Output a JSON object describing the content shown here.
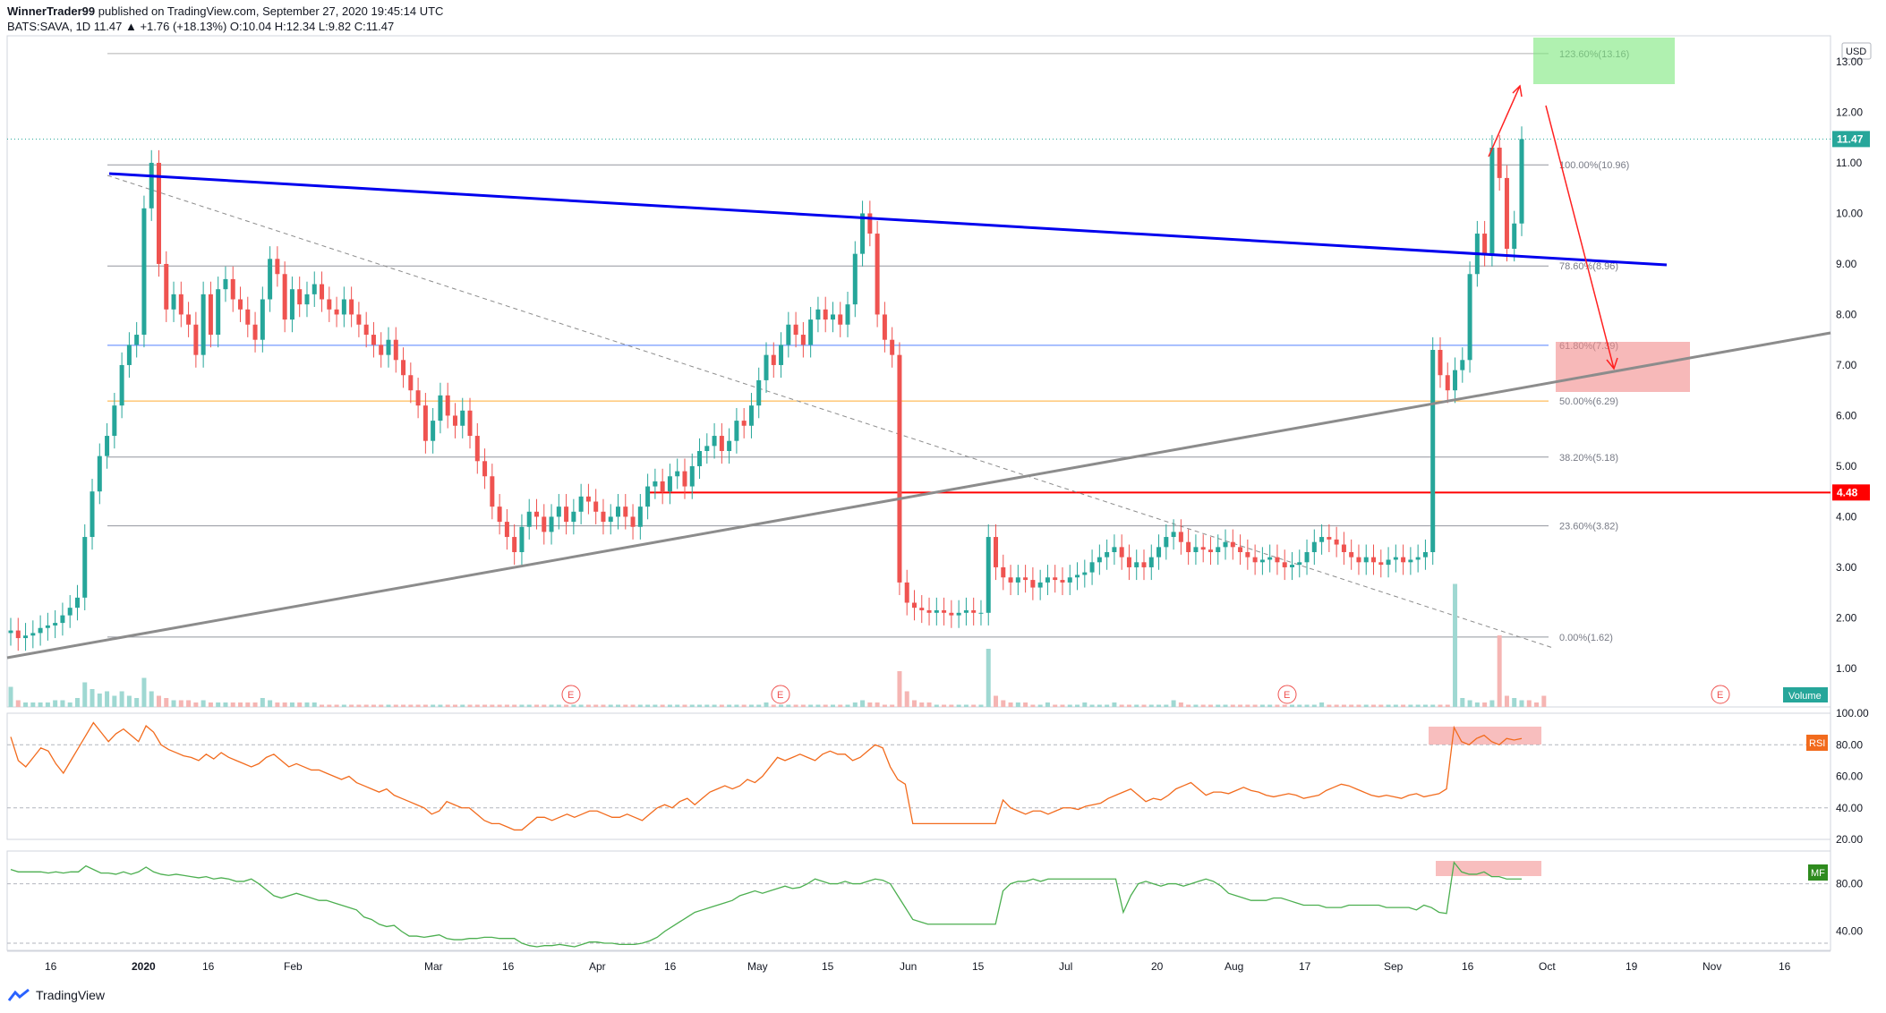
{
  "header": {
    "publisher_line": "WinnerTrader99 published on TradingView.com, September 27, 2020 19:45:14 UTC",
    "publisher": "WinnerTrader99",
    "published_text": " published on TradingView.com, September 27, 2020 19:45:14 UTC",
    "ohlc_line": "BATS:SAVA, 1D  11.47 ▲ +1.76 (+18.13%) O:10.04 H:12.34 L:9.82 C:11.47"
  },
  "footer": {
    "brand": "TradingView"
  },
  "colors": {
    "up": "#26a69a",
    "down": "#ef5350",
    "trend_blue": "#0000ee",
    "trend_gray": "#8c8c8c",
    "support_red": "#ff0000",
    "rsi": "#f26b1d",
    "mf": "#4caf50",
    "fib_618": "#2962ff",
    "fib_50": "#ff9800"
  },
  "chart_data": [
    {
      "type": "candlestick",
      "title": "BATS:SAVA, 1D",
      "currency_label": "USD",
      "ylim": [
        0.6,
        13.6
      ],
      "y_ticks": [
        "13.00",
        "12.00",
        "11.00",
        "10.00",
        "9.00",
        "8.00",
        "7.00",
        "6.00",
        "5.00",
        "4.00",
        "3.00",
        "2.00",
        "1.00"
      ],
      "x_ticks": [
        "16",
        "2020",
        "16",
        "Feb",
        "Mar",
        "16",
        "Apr",
        "16",
        "May",
        "15",
        "Jun",
        "15",
        "Jul",
        "20",
        "Aug",
        "17",
        "Sep",
        "16",
        "Oct",
        "19",
        "Nov",
        "16"
      ],
      "price_labels": [
        {
          "text": "11.47",
          "color": "#26a69a"
        },
        {
          "text": "4.48",
          "color": "#ff0000"
        }
      ],
      "fibonacci": [
        {
          "label": "123.60%(13.16)",
          "value": 13.16
        },
        {
          "label": "100.00%(10.96)",
          "value": 10.96
        },
        {
          "label": "78.60%(8.96)",
          "value": 8.96
        },
        {
          "label": "61.80%(7.39)",
          "value": 7.39
        },
        {
          "label": "50.00%(6.29)",
          "value": 6.29
        },
        {
          "label": "38.20%(5.18)",
          "value": 5.18
        },
        {
          "label": "23.60%(3.82)",
          "value": 3.82
        },
        {
          "label": "0.00%(1.62)",
          "value": 1.62
        }
      ],
      "horizontal_support": 4.48,
      "volume_label": "Volume",
      "earnings_marker": "E",
      "close_series": [
        1.75,
        1.6,
        1.65,
        1.7,
        1.8,
        1.85,
        1.9,
        2.05,
        2.2,
        2.4,
        3.6,
        4.5,
        5.2,
        5.6,
        6.2,
        7.0,
        7.4,
        7.6,
        10.1,
        11.0,
        9.0,
        8.1,
        8.4,
        8.0,
        7.8,
        7.2,
        8.4,
        7.6,
        8.5,
        8.7,
        8.3,
        8.1,
        7.8,
        7.5,
        8.3,
        9.1,
        8.8,
        7.9,
        8.5,
        8.2,
        8.4,
        8.6,
        8.3,
        8.1,
        8.0,
        8.3,
        8.0,
        7.8,
        7.6,
        7.4,
        7.2,
        7.5,
        7.1,
        6.8,
        6.5,
        6.2,
        5.5,
        5.9,
        6.4,
        6.0,
        5.8,
        6.1,
        5.6,
        5.1,
        4.8,
        4.2,
        3.9,
        3.6,
        3.3,
        3.8,
        4.1,
        4.0,
        3.7,
        4.0,
        4.2,
        3.9,
        4.1,
        4.4,
        4.3,
        4.1,
        3.9,
        4.0,
        4.2,
        4.0,
        3.8,
        4.2,
        4.6,
        4.7,
        4.5,
        4.8,
        4.9,
        4.6,
        5.0,
        5.3,
        5.4,
        5.6,
        5.3,
        5.5,
        5.9,
        5.8,
        6.2,
        6.7,
        7.2,
        7.0,
        7.4,
        7.8,
        7.6,
        7.4,
        7.9,
        8.1,
        7.9,
        8.0,
        7.8,
        8.2,
        9.2,
        10.0,
        9.6,
        8.0,
        7.5,
        7.2,
        2.7,
        2.3,
        2.2,
        2.15,
        2.1,
        2.15,
        2.1,
        2.05,
        2.1,
        2.15,
        2.1,
        2.1,
        3.6,
        3.0,
        2.8,
        2.7,
        2.8,
        2.75,
        2.6,
        2.7,
        2.8,
        2.75,
        2.7,
        2.8,
        2.85,
        2.9,
        3.1,
        3.2,
        3.3,
        3.4,
        3.2,
        3.0,
        3.1,
        3.0,
        3.2,
        3.4,
        3.6,
        3.7,
        3.5,
        3.3,
        3.4,
        3.35,
        3.3,
        3.4,
        3.5,
        3.4,
        3.3,
        3.2,
        3.1,
        3.15,
        3.2,
        3.1,
        3.0,
        3.05,
        3.1,
        3.3,
        3.5,
        3.6,
        3.55,
        3.45,
        3.3,
        3.2,
        3.1,
        3.2,
        3.1,
        3.05,
        3.15,
        3.2,
        3.1,
        3.15,
        3.2,
        3.3,
        7.3,
        6.8,
        6.5,
        6.9,
        7.1,
        8.8,
        9.6,
        9.2,
        11.3,
        10.7,
        9.3,
        9.8,
        11.47
      ],
      "volume_series": [
        0.9,
        0.3,
        0.2,
        0.2,
        0.2,
        0.2,
        0.3,
        0.3,
        0.2,
        0.4,
        1.1,
        0.8,
        0.6,
        0.7,
        0.5,
        0.7,
        0.5,
        0.4,
        1.3,
        0.7,
        0.5,
        0.4,
        0.3,
        0.3,
        0.3,
        0.2,
        0.3,
        0.2,
        0.2,
        0.2,
        0.2,
        0.2,
        0.2,
        0.2,
        0.4,
        0.3,
        0.2,
        0.2,
        0.2,
        0.2,
        0.2,
        0.2,
        0.1,
        0.1,
        0.1,
        0.1,
        0.1,
        0.1,
        0.1,
        0.1,
        0.1,
        0.1,
        0.1,
        0.1,
        0.1,
        0.1,
        0.1,
        0.1,
        0.1,
        0.1,
        0.1,
        0.1,
        0.1,
        0.1,
        0.1,
        0.1,
        0.1,
        0.1,
        0.1,
        0.1,
        0.1,
        0.1,
        0.1,
        0.1,
        0.1,
        0.1,
        0.1,
        0.1,
        0.1,
        0.1,
        0.1,
        0.1,
        0.1,
        0.1,
        0.1,
        0.1,
        0.1,
        0.1,
        0.1,
        0.1,
        0.1,
        0.1,
        0.1,
        0.1,
        0.1,
        0.1,
        0.1,
        0.1,
        0.1,
        0.1,
        0.1,
        0.1,
        0.2,
        0.1,
        0.1,
        0.1,
        0.1,
        0.1,
        0.1,
        0.1,
        0.1,
        0.1,
        0.1,
        0.1,
        0.2,
        0.3,
        0.2,
        0.2,
        0.1,
        0.1,
        1.6,
        0.7,
        0.3,
        0.2,
        0.2,
        0.1,
        0.1,
        0.1,
        0.1,
        0.1,
        0.1,
        0.1,
        2.6,
        0.5,
        0.3,
        0.2,
        0.2,
        0.2,
        0.1,
        0.1,
        0.2,
        0.1,
        0.1,
        0.1,
        0.1,
        0.2,
        0.1,
        0.1,
        0.1,
        0.2,
        0.1,
        0.1,
        0.1,
        0.1,
        0.1,
        0.1,
        0.1,
        0.3,
        0.2,
        0.1,
        0.1,
        0.1,
        0.1,
        0.1,
        0.1,
        0.1,
        0.1,
        0.1,
        0.1,
        0.1,
        0.1,
        0.1,
        0.1,
        0.1,
        0.1,
        0.1,
        0.1,
        0.2,
        0.1,
        0.1,
        0.1,
        0.1,
        0.1,
        0.1,
        0.1,
        0.1,
        0.1,
        0.1,
        0.1,
        0.1,
        0.1,
        0.1,
        0.1,
        0.1,
        0.1,
        5.5,
        0.4,
        0.3,
        0.2,
        0.2,
        0.3,
        3.2,
        0.5,
        0.4,
        0.3,
        0.3,
        0.2,
        0.5
      ]
    },
    {
      "type": "line",
      "title": "RSI",
      "ylim": [
        20,
        100
      ],
      "y_ticks": [
        "100.00",
        "80.00",
        "60.00",
        "40.00",
        "20.00"
      ],
      "values": [
        85,
        70,
        66,
        72,
        78,
        76,
        68,
        62,
        70,
        78,
        86,
        94,
        88,
        82,
        87,
        90,
        86,
        82,
        92,
        88,
        80,
        77,
        75,
        73,
        72,
        70,
        74,
        71,
        75,
        72,
        70,
        68,
        66,
        68,
        72,
        74,
        70,
        66,
        68,
        66,
        64,
        64,
        62,
        60,
        58,
        60,
        56,
        54,
        52,
        50,
        52,
        48,
        46,
        44,
        42,
        40,
        36,
        38,
        44,
        42,
        40,
        40,
        36,
        32,
        30,
        30,
        28,
        26,
        26,
        30,
        34,
        34,
        32,
        34,
        36,
        34,
        36,
        38,
        38,
        36,
        34,
        34,
        36,
        34,
        32,
        36,
        40,
        42,
        40,
        44,
        46,
        42,
        46,
        50,
        52,
        54,
        52,
        54,
        58,
        56,
        60,
        66,
        72,
        70,
        72,
        74,
        72,
        70,
        74,
        76,
        74,
        74,
        70,
        72,
        76,
        80,
        78,
        66,
        58,
        55,
        30,
        30,
        30,
        30,
        30,
        30,
        30,
        30,
        30,
        30,
        30,
        30,
        45,
        40,
        38,
        36,
        38,
        38,
        36,
        38,
        40,
        40,
        39,
        41,
        42,
        43,
        46,
        48,
        50,
        52,
        48,
        44,
        46,
        45,
        48,
        52,
        54,
        56,
        52,
        48,
        50,
        50,
        49,
        51,
        53,
        51,
        50,
        48,
        47,
        48,
        49,
        48,
        46,
        47,
        48,
        51,
        53,
        55,
        54,
        52,
        50,
        48,
        47,
        48,
        47,
        46,
        48,
        49,
        47,
        48,
        49,
        52,
        91,
        82,
        80,
        84,
        86,
        82,
        80,
        84,
        83,
        84
      ]
    },
    {
      "type": "line",
      "title": "MF",
      "ylim": [
        24,
        100
      ],
      "y_ticks": [
        "80.00",
        "40.00"
      ],
      "values": [
        92,
        90,
        90,
        90,
        90,
        89,
        90,
        89,
        90,
        90,
        95,
        92,
        89,
        89,
        88,
        90,
        88,
        90,
        94,
        90,
        88,
        87,
        88,
        87,
        86,
        85,
        86,
        84,
        85,
        84,
        82,
        82,
        84,
        80,
        75,
        70,
        68,
        70,
        72,
        70,
        68,
        66,
        66,
        64,
        62,
        60,
        58,
        52,
        50,
        46,
        44,
        45,
        40,
        36,
        36,
        35,
        36,
        37,
        34,
        33,
        33,
        34,
        34,
        35,
        35,
        34,
        34,
        34,
        30,
        28,
        27,
        28,
        28,
        29,
        28,
        27,
        29,
        31,
        31,
        30,
        30,
        29,
        29,
        29,
        30,
        32,
        35,
        40,
        44,
        48,
        52,
        56,
        58,
        60,
        62,
        64,
        66,
        70,
        72,
        74,
        72,
        74,
        76,
        78,
        76,
        77,
        80,
        84,
        82,
        80,
        80,
        82,
        80,
        80,
        82,
        84,
        83,
        80,
        70,
        60,
        50,
        48,
        46,
        46,
        46,
        46,
        46,
        46,
        46,
        46,
        46,
        46,
        74,
        80,
        82,
        82,
        84,
        82,
        84,
        84,
        84,
        84,
        84,
        84,
        84,
        84,
        84,
        84,
        56,
        70,
        80,
        82,
        80,
        78,
        80,
        80,
        78,
        80,
        82,
        84,
        82,
        78,
        72,
        70,
        68,
        66,
        66,
        66,
        68,
        68,
        66,
        64,
        62,
        62,
        62,
        60,
        60,
        60,
        62,
        62,
        62,
        62,
        62,
        60,
        60,
        60,
        60,
        58,
        62,
        60,
        56,
        55,
        98,
        90,
        88,
        88,
        90,
        86,
        86,
        84,
        84,
        84
      ]
    }
  ],
  "indicator_labels": {
    "rsi": "RSI",
    "mf": "MF"
  }
}
